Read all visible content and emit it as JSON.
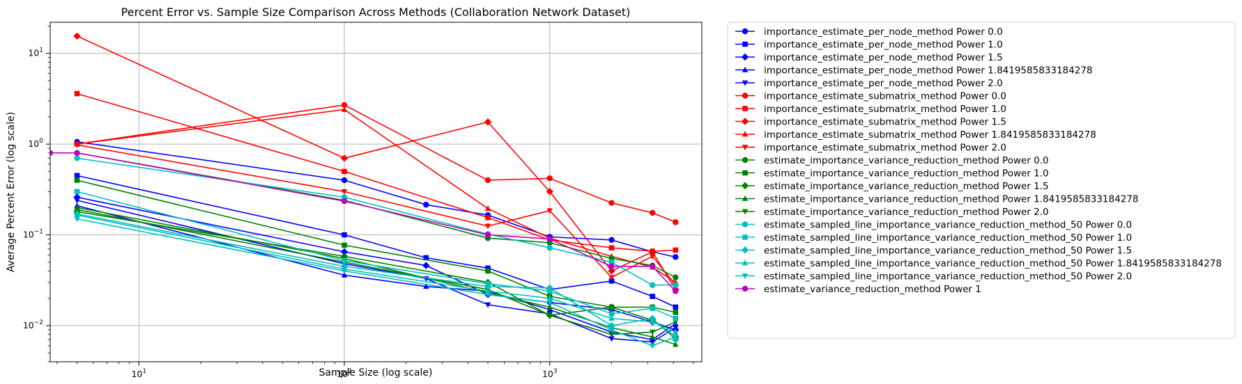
{
  "chart_data": {
    "type": "line",
    "title": "Percent Error vs. Sample Size Comparison Across Methods (Collaboration Network Dataset)",
    "xlabel": "Sample Size (log scale)",
    "ylabel": "Average Percent Error (log scale)",
    "xscale": "log",
    "yscale": "log",
    "xlim": [
      3.7,
      5500
    ],
    "ylim": [
      0.004,
      22
    ],
    "x_ticks": [
      {
        "value": 10,
        "base": "10",
        "exp": "1"
      },
      {
        "value": 100,
        "base": "10",
        "exp": "2"
      },
      {
        "value": 1000,
        "base": "10",
        "exp": "3"
      }
    ],
    "y_ticks": [
      {
        "value": 0.01,
        "base": "10",
        "exp": "−2"
      },
      {
        "value": 0.1,
        "base": "10",
        "exp": "−1"
      },
      {
        "value": 1,
        "base": "10",
        "exp": "0"
      },
      {
        "value": 10,
        "base": "10",
        "exp": "1"
      }
    ],
    "grid": true,
    "legend_position": "outside-right",
    "series": [
      {
        "name": "importance_estimate_per_node_method Power 0.0",
        "color": "#0000ff",
        "marker": "circle",
        "x": [
          5,
          100,
          250,
          500,
          1000,
          2000,
          3162,
          4096
        ],
        "y": [
          1.06,
          0.4,
          0.215,
          0.165,
          0.095,
          0.088,
          0.065,
          0.057
        ]
      },
      {
        "name": "importance_estimate_per_node_method Power 1.0",
        "color": "#0000ff",
        "marker": "square",
        "x": [
          5,
          100,
          250,
          500,
          1000,
          2000,
          3162,
          4096
        ],
        "y": [
          0.45,
          0.1,
          0.056,
          0.043,
          0.025,
          0.031,
          0.021,
          0.016
        ]
      },
      {
        "name": "importance_estimate_per_node_method Power 1.5",
        "color": "#0000ff",
        "marker": "diamond",
        "x": [
          5,
          100,
          250,
          500,
          1000,
          2000,
          3162,
          4096
        ],
        "y": [
          0.26,
          0.065,
          0.046,
          0.022,
          0.018,
          0.015,
          0.011,
          0.009
        ]
      },
      {
        "name": "importance_estimate_per_node_method Power 1.8419585833184278",
        "color": "#0000ff",
        "marker": "triangle-up",
        "x": [
          5,
          100,
          250,
          500,
          1000,
          2000,
          3162,
          4096
        ],
        "y": [
          0.21,
          0.036,
          0.027,
          0.024,
          0.015,
          0.0085,
          0.007,
          0.0105
        ]
      },
      {
        "name": "importance_estimate_per_node_method Power 2.0",
        "color": "#0000ff",
        "marker": "triangle-down",
        "x": [
          5,
          100,
          250,
          500,
          1000,
          2000,
          3162,
          4096
        ],
        "y": [
          0.24,
          0.048,
          0.033,
          0.017,
          0.0135,
          0.0072,
          0.0066,
          0.0095
        ]
      },
      {
        "name": "importance_estimate_submatrix_method Power 0.0",
        "color": "#ff0000",
        "marker": "circle",
        "x": [
          5,
          100,
          500,
          1000,
          2000,
          3162,
          4096
        ],
        "y": [
          1.0,
          2.7,
          0.4,
          0.42,
          0.225,
          0.175,
          0.138
        ]
      },
      {
        "name": "importance_estimate_submatrix_method Power 1.0",
        "color": "#ff0000",
        "marker": "square",
        "x": [
          5,
          100,
          500,
          1000,
          2000,
          3162,
          4096
        ],
        "y": [
          3.6,
          0.5,
          0.155,
          0.088,
          0.072,
          0.066,
          0.068
        ]
      },
      {
        "name": "importance_estimate_submatrix_method Power 1.5",
        "color": "#ff0000",
        "marker": "diamond",
        "x": [
          5,
          100,
          500,
          1000,
          2000,
          3162,
          4096
        ],
        "y": [
          15.5,
          0.7,
          1.75,
          0.3,
          0.04,
          0.065,
          0.025
        ]
      },
      {
        "name": "importance_estimate_submatrix_method Power 1.8419585833184278",
        "color": "#ff0000",
        "marker": "triangle-up",
        "x": [
          5,
          100,
          500,
          1000,
          2000,
          3162,
          4096
        ],
        "y": [
          1.0,
          2.4,
          0.195,
          0.092,
          0.058,
          0.044,
          0.03
        ]
      },
      {
        "name": "importance_estimate_submatrix_method Power 2.0",
        "color": "#ff0000",
        "marker": "triangle-down",
        "x": [
          5,
          100,
          500,
          1000,
          2000,
          3162,
          4096
        ],
        "y": [
          0.98,
          0.3,
          0.125,
          0.185,
          0.034,
          0.058,
          0.028
        ]
      },
      {
        "name": "estimate_importance_variance_reduction_method Power 0.0",
        "color": "#008000",
        "marker": "circle",
        "x": [
          5,
          100,
          500,
          1000,
          2000,
          3162,
          4096
        ],
        "y": [
          0.8,
          0.24,
          0.092,
          0.082,
          0.055,
          0.046,
          0.034
        ]
      },
      {
        "name": "estimate_importance_variance_reduction_method Power 1.0",
        "color": "#008000",
        "marker": "square",
        "x": [
          5,
          100,
          500,
          1000,
          2000,
          3162,
          4096
        ],
        "y": [
          0.4,
          0.077,
          0.04,
          0.021,
          0.016,
          0.016,
          0.014
        ]
      },
      {
        "name": "estimate_importance_variance_reduction_method Power 1.5",
        "color": "#008000",
        "marker": "diamond",
        "x": [
          5,
          100,
          500,
          1000,
          2000,
          3162,
          4096
        ],
        "y": [
          0.18,
          0.058,
          0.03,
          0.013,
          0.016,
          0.0115,
          0.0075
        ]
      },
      {
        "name": "estimate_importance_variance_reduction_method Power 1.8419585833184278",
        "color": "#008000",
        "marker": "triangle-up",
        "x": [
          5,
          100,
          500,
          1000,
          2000,
          3162,
          4096
        ],
        "y": [
          0.2,
          0.055,
          0.023,
          0.016,
          0.0095,
          0.0075,
          0.0062
        ]
      },
      {
        "name": "estimate_importance_variance_reduction_method Power 2.0",
        "color": "#008000",
        "marker": "triangle-down",
        "x": [
          5,
          100,
          500,
          1000,
          2000,
          3162,
          4096
        ],
        "y": [
          0.19,
          0.05,
          0.025,
          0.013,
          0.008,
          0.0085,
          0.011
        ]
      },
      {
        "name": "estimate_sampled_line_importance_variance_reduction_method_50 Power 0.0",
        "color": "#00bfbf",
        "marker": "circle",
        "x": [
          5,
          100,
          500,
          1000,
          2000,
          3162,
          4096
        ],
        "y": [
          0.7,
          0.26,
          0.102,
          0.072,
          0.05,
          0.028,
          0.028
        ]
      },
      {
        "name": "estimate_sampled_line_importance_variance_reduction_method_50 Power 1.0",
        "color": "#00bfbf",
        "marker": "square",
        "x": [
          5,
          100,
          500,
          1000,
          2000,
          3162,
          4096
        ],
        "y": [
          0.3,
          0.052,
          0.029,
          0.024,
          0.0135,
          0.0155,
          0.012
        ]
      },
      {
        "name": "estimate_sampled_line_importance_variance_reduction_method_50 Power 1.5",
        "color": "#00bfbf",
        "marker": "diamond",
        "x": [
          5,
          100,
          500,
          1000,
          2000,
          3162,
          4096
        ],
        "y": [
          0.17,
          0.045,
          0.027,
          0.026,
          0.01,
          0.012,
          0.007
        ]
      },
      {
        "name": "estimate_sampled_line_importance_variance_reduction_method_50 Power 1.8419585833184278",
        "color": "#00bfbf",
        "marker": "triangle-up",
        "x": [
          5,
          100,
          500,
          1000,
          2000,
          3162,
          4096
        ],
        "y": [
          0.165,
          0.042,
          0.024,
          0.02,
          0.012,
          0.011,
          0.0085
        ]
      },
      {
        "name": "estimate_sampled_line_importance_variance_reduction_method_50 Power 2.0",
        "color": "#00bfbf",
        "marker": "triangle-down",
        "x": [
          5,
          100,
          500,
          1000,
          2000,
          3162,
          4096
        ],
        "y": [
          0.15,
          0.04,
          0.022,
          0.018,
          0.009,
          0.006,
          0.0075
        ]
      },
      {
        "name": "estimate_variance_reduction_method Power 1",
        "color": "#bf00bf",
        "marker": "circle",
        "x": [
          3.7,
          5,
          100,
          500,
          1000,
          2000,
          3162,
          4096
        ],
        "y": [
          0.8,
          0.8,
          0.235,
          0.1,
          0.09,
          0.045,
          0.045,
          0.024
        ]
      }
    ]
  }
}
